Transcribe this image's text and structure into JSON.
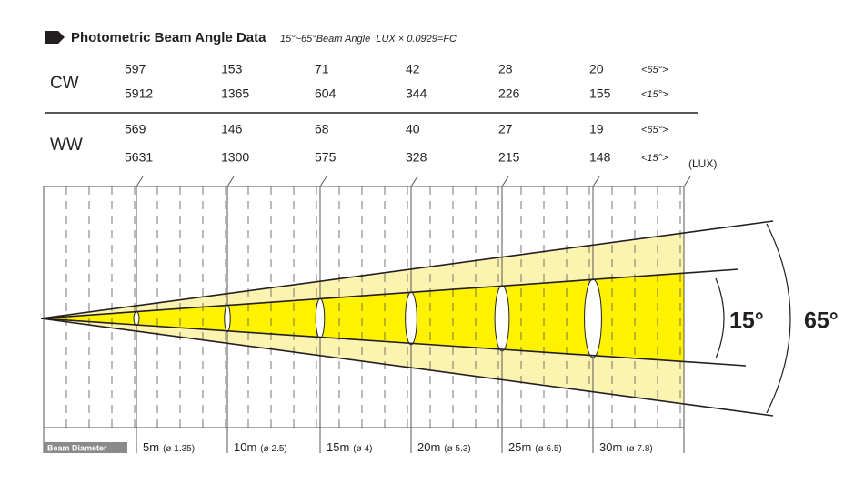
{
  "header": {
    "title": "Photometric Beam Angle Data",
    "subtitle": "15°~65°Beam Angle  LUX × 0.0929=FC"
  },
  "table": {
    "unit": "(LUX)",
    "groups": [
      {
        "label": "CW",
        "rows": [
          {
            "values": [
              597,
              153,
              71,
              42,
              28,
              20
            ],
            "angle": "<65°>"
          },
          {
            "values": [
              5912,
              1365,
              604,
              344,
              226,
              155
            ],
            "angle": "<15°>"
          }
        ]
      },
      {
        "label": "WW",
        "rows": [
          {
            "values": [
              569,
              146,
              68,
              40,
              27,
              19
            ],
            "angle": "<65°>"
          },
          {
            "values": [
              5631,
              1300,
              575,
              328,
              215,
              148
            ],
            "angle": "<15°>"
          }
        ]
      }
    ]
  },
  "diagram": {
    "inner_angle": "15°",
    "outer_angle": "65°",
    "beam_label": "Beam Diameter",
    "distances": [
      {
        "distance": "5m",
        "diameter": "(ø 1.35)"
      },
      {
        "distance": "10m",
        "diameter": "(ø 2.5)"
      },
      {
        "distance": "15m",
        "diameter": "(ø 4)"
      },
      {
        "distance": "20m",
        "diameter": "(ø 5.3)"
      },
      {
        "distance": "25m",
        "diameter": "(ø 6.5)"
      },
      {
        "distance": "30m",
        "diameter": "(ø 7.8)"
      }
    ]
  }
}
